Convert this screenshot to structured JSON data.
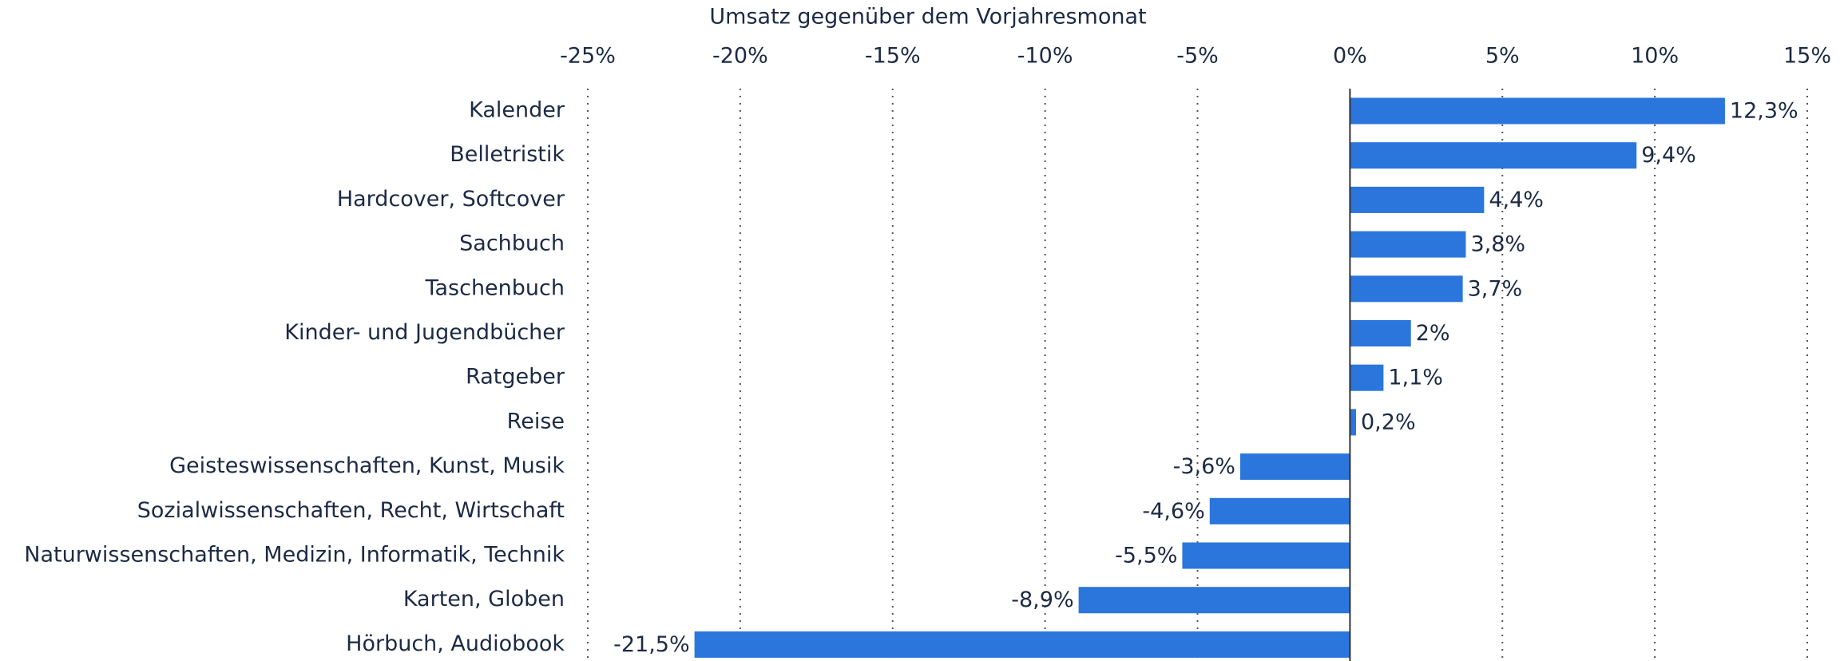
{
  "chart_data": {
    "type": "barh",
    "xlabel": "Umsatz gegenüber dem Vorjahresmonat",
    "categories": [
      "Kalender",
      "Belletristik",
      "Hardcover, Softcover",
      "Sachbuch",
      "Taschenbuch",
      "Kinder- und Jugendbücher",
      "Ratgeber",
      "Reise",
      "Geisteswissenschaften, Kunst, Musik",
      "Sozialwissenschaften, Recht, Wirtschaft",
      "Naturwissenschaften, Medizin, Informatik, Technik",
      "Karten, Globen",
      "Hörbuch, Audiobook"
    ],
    "values": [
      12.3,
      9.4,
      4.4,
      3.8,
      3.7,
      2,
      1.1,
      0.2,
      -3.6,
      -4.6,
      -5.5,
      -8.9,
      -21.5
    ],
    "value_labels": [
      "12,3%",
      "9,4%",
      "4,4%",
      "3,8%",
      "3,7%",
      "2%",
      "1,1%",
      "0,2%",
      "-3,6%",
      "-4,6%",
      "-5,5%",
      "-8,9%",
      "-21,5%"
    ],
    "color": "#2a76dd",
    "xlim": [
      -25,
      15
    ],
    "xticks": [
      {
        "value": -25,
        "label": "-25%"
      },
      {
        "value": -20,
        "label": "-20%"
      },
      {
        "value": -15,
        "label": "-15%"
      },
      {
        "value": -10,
        "label": "-10%"
      },
      {
        "value": -5,
        "label": "-5%"
      },
      {
        "value": 0,
        "label": "0%"
      },
      {
        "value": 5,
        "label": "5%"
      },
      {
        "value": 10,
        "label": "10%"
      },
      {
        "value": 15,
        "label": "15%"
      }
    ],
    "grid": true
  }
}
